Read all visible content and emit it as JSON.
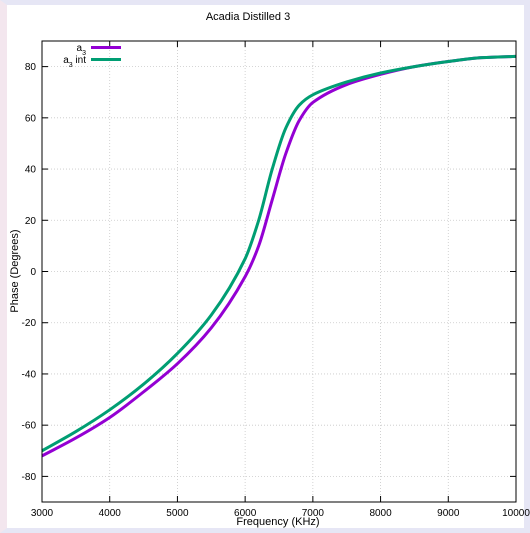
{
  "chart_data": {
    "type": "line",
    "title": "Acadia Distilled 3",
    "xlabel": "Frequency (KHz)",
    "ylabel": "Phase (Degrees)",
    "xlim": [
      3000,
      10000
    ],
    "ylim": [
      -90,
      90
    ],
    "x_ticks": [
      3000,
      4000,
      5000,
      6000,
      7000,
      8000,
      9000,
      10000
    ],
    "y_ticks": [
      -80,
      -60,
      -40,
      -20,
      0,
      20,
      40,
      60,
      80
    ],
    "grid": true,
    "legend_position": "top-left",
    "series": [
      {
        "name_base": "a",
        "name_sub": "3",
        "name_suffix": "",
        "color": "#9400d3",
        "x": [
          3000,
          3500,
          4000,
          4500,
          5000,
          5500,
          6000,
          6200,
          6400,
          6600,
          6800,
          7000,
          7500,
          8000,
          8500,
          9000,
          9500,
          10000
        ],
        "y": [
          -72,
          -65,
          -57,
          -47,
          -36,
          -22,
          -2,
          10,
          28,
          46,
          59,
          66,
          73,
          77,
          80,
          82,
          83.5,
          84
        ]
      },
      {
        "name_base": "a",
        "name_sub": "3",
        "name_suffix": " int",
        "color": "#009e73",
        "x": [
          3000,
          3500,
          4000,
          4500,
          5000,
          5500,
          6000,
          6200,
          6400,
          6600,
          6800,
          7000,
          7500,
          8000,
          8500,
          9000,
          9500,
          10000
        ],
        "y": [
          -70,
          -62.5,
          -54,
          -44,
          -32,
          -17,
          5,
          20,
          40,
          56,
          65,
          69,
          74,
          77.5,
          80,
          82,
          83.5,
          84
        ]
      }
    ]
  }
}
